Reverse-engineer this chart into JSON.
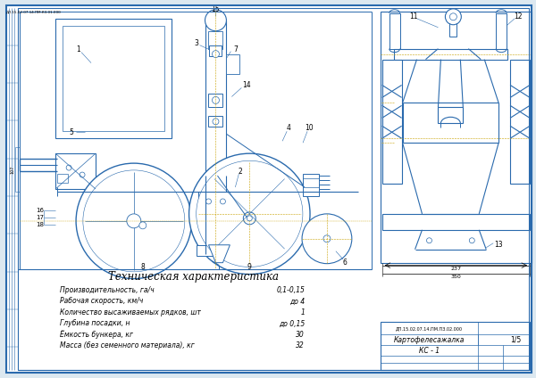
{
  "bg_color": "#dce8f0",
  "line_color": "#2a6aad",
  "line_color_light": "#5599cc",
  "centerline_color": "#c8a000",
  "title_tech": "Техническая характеристика",
  "tech_specs": [
    [
      "Производительность, га/ч",
      "0,1-0,15"
    ],
    [
      "Рабочая скорость, км/ч",
      "до 4"
    ],
    [
      "Количество высаживаемых рядков, шт",
      "1"
    ],
    [
      "Глубина посадки, н",
      "до 0,15"
    ],
    [
      "Ёмкость бункера, кг",
      "30"
    ],
    [
      "Масса (без семенного материала), кг",
      "32"
    ]
  ],
  "title_block_name": "Картофелесажалка",
  "title_block_code": "КС - 1",
  "doc_num": "ДП.15.02.07.14.ПМ.ПЗ.02.000",
  "sheet": "1/5",
  "header_text": "ДП.15.02.07.14.ПМ.КЗ.01.000"
}
